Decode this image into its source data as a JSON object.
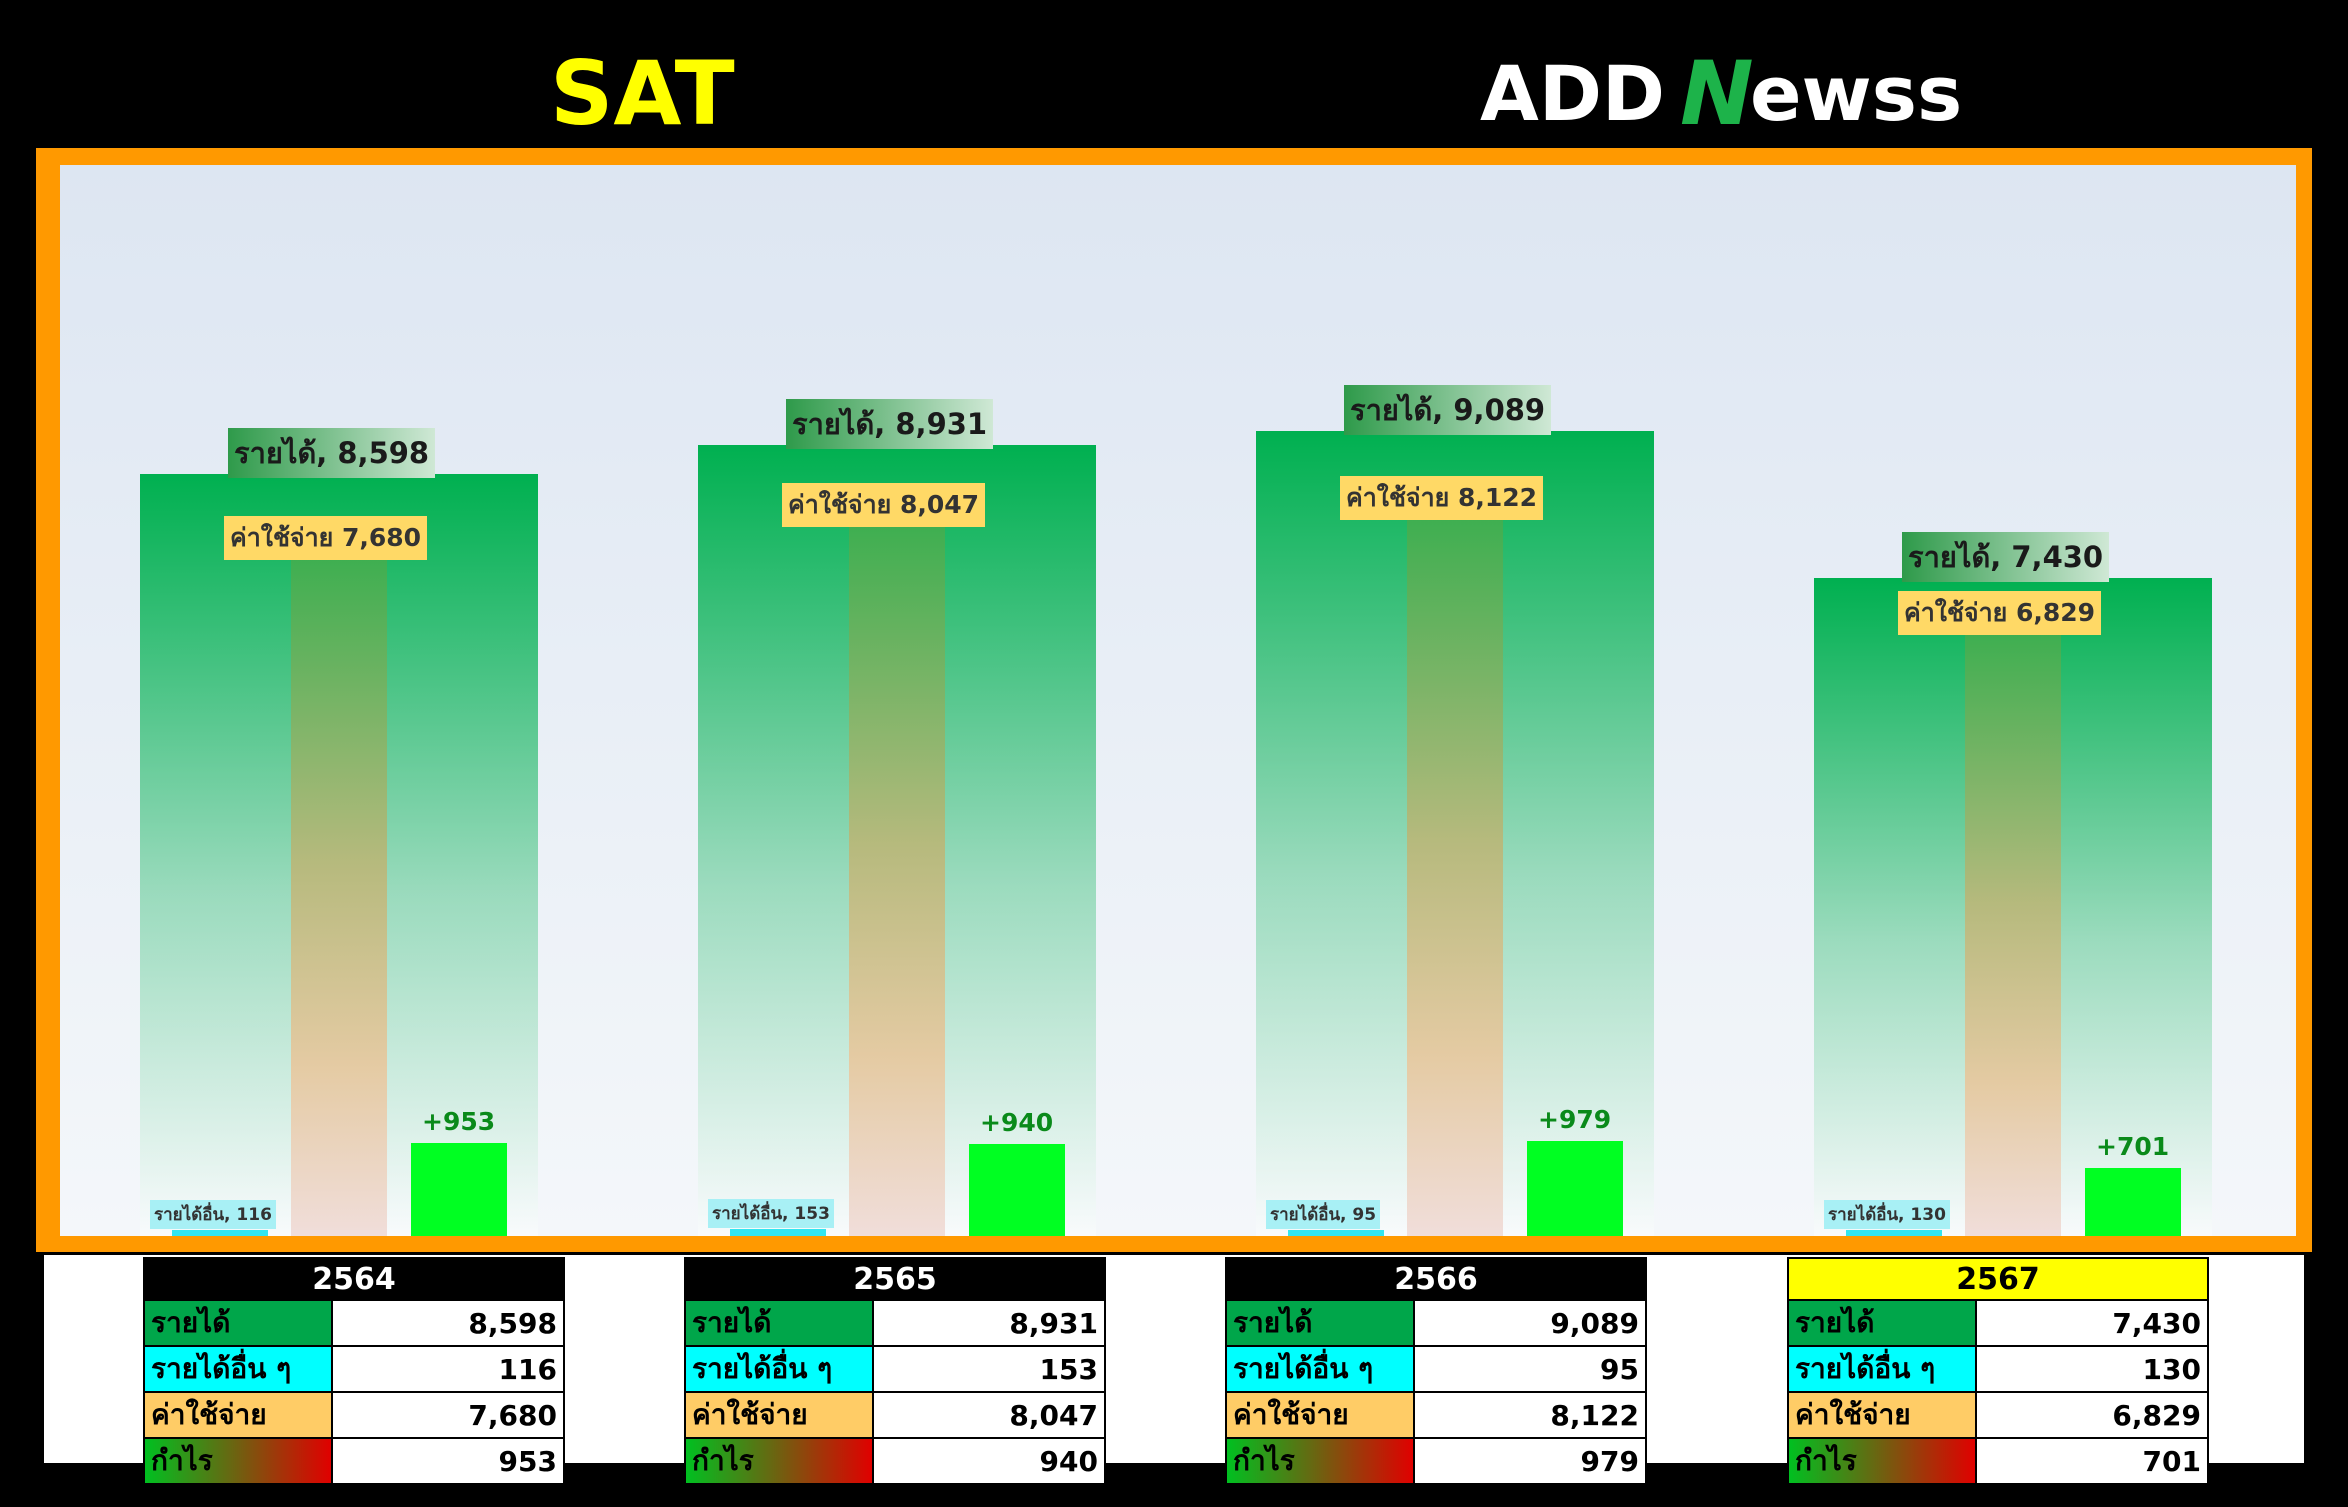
{
  "title": "SAT",
  "logo": {
    "text_a": "ADD",
    "text_n": "N",
    "text_b": "ewss"
  },
  "colors": {
    "revenue": "#00b050",
    "expense": "#ffd966",
    "other": "#33e6f0",
    "profit": "#00ff22",
    "frame": "#ff9900"
  },
  "chart_data": {
    "type": "bar",
    "categories": [
      "2564",
      "2565",
      "2566",
      "2567"
    ],
    "series": [
      {
        "name": "รายได้",
        "values": [
          8598,
          8931,
          9089,
          7430
        ]
      },
      {
        "name": "รายได้อื่น ๆ",
        "values": [
          116,
          153,
          95,
          130
        ]
      },
      {
        "name": "ค่าใช้จ่าย",
        "values": [
          7680,
          8047,
          8122,
          6829
        ]
      },
      {
        "name": "กำไร",
        "values": [
          953,
          940,
          979,
          701
        ]
      }
    ],
    "labels": {
      "revenue": [
        "รายได้, 8,598",
        "รายได้, 8,931",
        "รายได้, 9,089",
        "รายได้, 7,430"
      ],
      "other": [
        "รายได้อื่น, 116",
        "รายได้อื่น, 153",
        "รายได้อื่น, 95",
        "รายได้อื่น, 130"
      ],
      "expense": [
        "ค่าใช้จ่าย 7,680",
        "ค่าใช้จ่าย 8,047",
        "ค่าใช้จ่าย 8,122",
        "ค่าใช้จ่าย 6,829"
      ],
      "profit": [
        "+953",
        "+940",
        "+979",
        "+701"
      ]
    },
    "ylim": [
      0,
      10000
    ],
    "grid": false
  },
  "tables": [
    {
      "year": "2564",
      "highlight": false,
      "rows": [
        {
          "label": "รายได้",
          "value": "8,598"
        },
        {
          "label": "รายได้อื่น ๆ",
          "value": "116"
        },
        {
          "label": "ค่าใช้จ่าย",
          "value": "7,680"
        },
        {
          "label": "กำไร",
          "value": "953"
        }
      ]
    },
    {
      "year": "2565",
      "highlight": false,
      "rows": [
        {
          "label": "รายได้",
          "value": "8,931"
        },
        {
          "label": "รายได้อื่น ๆ",
          "value": "153"
        },
        {
          "label": "ค่าใช้จ่าย",
          "value": "8,047"
        },
        {
          "label": "กำไร",
          "value": "940"
        }
      ]
    },
    {
      "year": "2566",
      "highlight": false,
      "rows": [
        {
          "label": "รายได้",
          "value": "9,089"
        },
        {
          "label": "รายได้อื่น ๆ",
          "value": "95"
        },
        {
          "label": "ค่าใช้จ่าย",
          "value": "8,122"
        },
        {
          "label": "กำไร",
          "value": "979"
        }
      ]
    },
    {
      "year": "2567",
      "highlight": true,
      "rows": [
        {
          "label": "รายได้",
          "value": "7,430"
        },
        {
          "label": "รายได้อื่น ๆ",
          "value": "130"
        },
        {
          "label": "ค่าใช้จ่าย",
          "value": "6,829"
        },
        {
          "label": "กำไร",
          "value": "701"
        }
      ]
    }
  ]
}
